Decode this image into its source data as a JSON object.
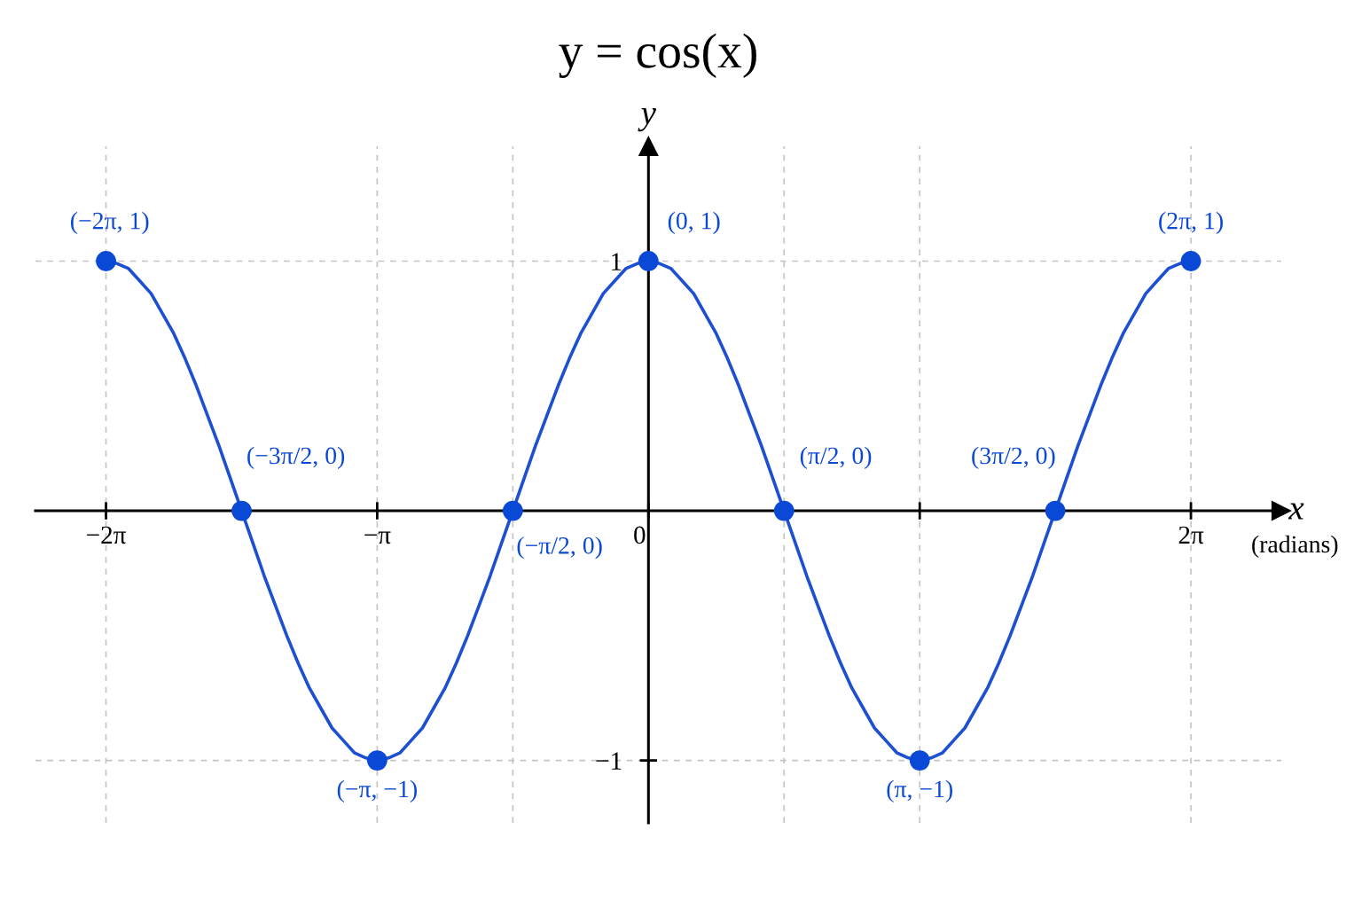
{
  "chart_data": {
    "type": "line",
    "title": "y = cos(x)",
    "xlabel": "x",
    "ylabel": "y",
    "xlim": [
      -7.1,
      7.33
    ],
    "ylim": [
      -1.25,
      1.46
    ],
    "xticks": [
      {
        "value": -6.283,
        "label": "−2π"
      },
      {
        "value": -3.142,
        "label": "−π"
      },
      {
        "value": -1.571,
        "label": null
      },
      {
        "value": 0,
        "label": "0"
      },
      {
        "value": 1.571,
        "label": null
      },
      {
        "value": 3.142,
        "label": null
      },
      {
        "value": 6.283,
        "label": "2π"
      }
    ],
    "yticks": [
      {
        "value": -1,
        "label": "−1"
      },
      {
        "value": 1,
        "label": "1"
      }
    ],
    "grid": true,
    "series": [
      {
        "color": "#1c4fd1",
        "line_style": "solid",
        "x": [
          -6.283,
          -6.152,
          -6.021,
          -5.89,
          -5.76,
          -5.629,
          -5.498,
          -5.367,
          -5.236,
          -5.105,
          -4.974,
          -4.843,
          -4.712,
          -4.581,
          -4.451,
          -4.32,
          -4.189,
          -4.058,
          -3.927,
          -3.796,
          -3.665,
          -3.534,
          -3.403,
          -3.272,
          -3.142,
          -3.011,
          -2.88,
          -2.749,
          -2.618,
          -2.487,
          -2.356,
          -2.225,
          -2.094,
          -1.963,
          -1.833,
          -1.702,
          -1.571,
          -1.44,
          -1.309,
          -1.178,
          -1.047,
          -0.916,
          -0.785,
          -0.654,
          -0.524,
          -0.393,
          -0.262,
          -0.131,
          0,
          0.131,
          0.262,
          0.393,
          0.524,
          0.654,
          0.785,
          0.916,
          1.047,
          1.178,
          1.309,
          1.44,
          1.571,
          1.702,
          1.833,
          1.963,
          2.094,
          2.225,
          2.356,
          2.487,
          2.618,
          2.749,
          2.88,
          3.011,
          3.142,
          3.272,
          3.403,
          3.534,
          3.665,
          3.796,
          3.927,
          4.058,
          4.189,
          4.32,
          4.451,
          4.581,
          4.712,
          4.843,
          4.974,
          5.105,
          5.236,
          5.367,
          5.498,
          5.629,
          5.76,
          5.89,
          6.021,
          6.152,
          6.283
        ],
        "values": [
          1,
          0.99,
          0.97,
          0.92,
          0.87,
          0.79,
          0.71,
          0.61,
          0.5,
          0.38,
          0.26,
          0.13,
          0,
          -0.13,
          -0.26,
          -0.38,
          -0.5,
          -0.61,
          -0.71,
          -0.79,
          -0.87,
          -0.92,
          -0.97,
          -0.99,
          -1,
          -0.99,
          -0.97,
          -0.92,
          -0.87,
          -0.79,
          -0.71,
          -0.61,
          -0.5,
          -0.38,
          -0.26,
          -0.13,
          0,
          0.13,
          0.26,
          0.38,
          0.5,
          0.61,
          0.71,
          0.79,
          0.87,
          0.92,
          0.97,
          0.99,
          1,
          0.99,
          0.97,
          0.92,
          0.87,
          0.79,
          0.71,
          0.61,
          0.5,
          0.38,
          0.26,
          0.13,
          0,
          -0.13,
          -0.26,
          -0.38,
          -0.5,
          -0.61,
          -0.71,
          -0.79,
          -0.87,
          -0.92,
          -0.97,
          -0.99,
          -1,
          -0.99,
          -0.97,
          -0.92,
          -0.87,
          -0.79,
          -0.71,
          -0.61,
          -0.5,
          -0.38,
          -0.26,
          -0.13,
          0,
          0.13,
          0.26,
          0.38,
          0.5,
          0.61,
          0.71,
          0.79,
          0.87,
          0.92,
          0.97,
          0.99,
          1
        ]
      },
      {
        "type": "scatter",
        "color": "#0a48d6",
        "marker": "circle",
        "x": [
          -6.283,
          -4.712,
          -3.142,
          -1.571,
          0,
          1.571,
          3.142,
          4.712,
          6.283
        ],
        "values": [
          1,
          0,
          -1,
          0,
          1,
          0,
          -1,
          0,
          1
        ]
      }
    ],
    "annotations": [
      {
        "text": "(−2π, 1)",
        "x": -6.283,
        "y": 1
      },
      {
        "text": "(−3π/2, 0)",
        "x": -4.712,
        "y": 0
      },
      {
        "text": "(−π, −1)",
        "x": -3.142,
        "y": -1
      },
      {
        "text": "(−π/2, 0)",
        "x": -1.571,
        "y": 0
      },
      {
        "text": "(0, 1)",
        "x": 0,
        "y": 1
      },
      {
        "text": "(π/2, 0)",
        "x": 1.571,
        "y": 0
      },
      {
        "text": "(π, −1)",
        "x": 3.142,
        "y": -1
      },
      {
        "text": "(3π/2, 0)",
        "x": 4.712,
        "y": 0
      },
      {
        "text": "(2π, 1)",
        "x": 6.283,
        "y": 1
      },
      "(radians)"
    ]
  }
}
